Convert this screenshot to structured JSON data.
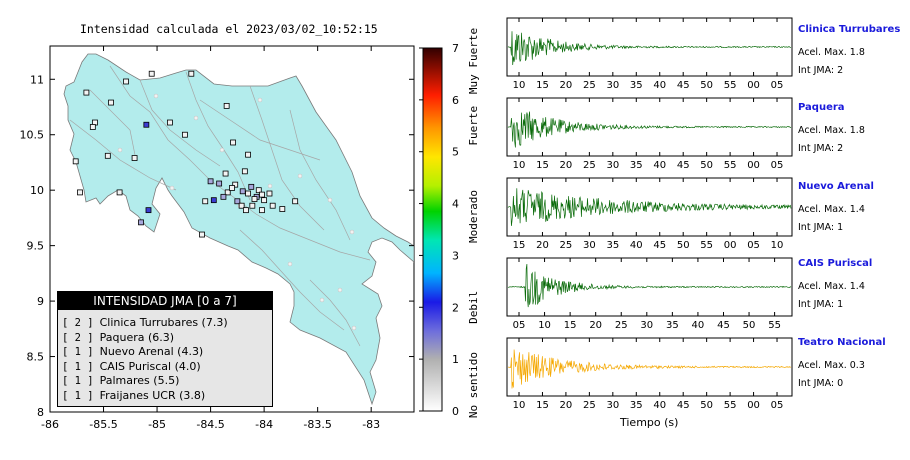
{
  "map": {
    "title": "Intensidad calculada el 2023/03/02_10:52:15",
    "lat_ticks": [
      "11",
      "10.5",
      "10",
      "9.5",
      "9",
      "8.5",
      "8"
    ],
    "lon_ticks": [
      "-86",
      "-85.5",
      "-85",
      "-84.5",
      "-84",
      "-83.5",
      "-83"
    ],
    "land_color": "#b3ecec",
    "station_markers": [
      {
        "lon": -85.66,
        "lat": 10.88,
        "level": 0
      },
      {
        "lon": -85.29,
        "lat": 10.98,
        "level": 0
      },
      {
        "lon": -85.05,
        "lat": 11.05,
        "level": 0
      },
      {
        "lon": -85.43,
        "lat": 10.79,
        "level": 0
      },
      {
        "lon": -84.68,
        "lat": 11.05,
        "level": 0
      },
      {
        "lon": -84.35,
        "lat": 10.76,
        "level": 0
      },
      {
        "lon": -85.58,
        "lat": 10.61,
        "level": 0
      },
      {
        "lon": -85.1,
        "lat": 10.59,
        "level": 2
      },
      {
        "lon": -84.88,
        "lat": 10.61,
        "level": 0
      },
      {
        "lon": -84.74,
        "lat": 10.5,
        "level": 0
      },
      {
        "lon": -84.29,
        "lat": 10.43,
        "level": 0
      },
      {
        "lon": -84.15,
        "lat": 10.32,
        "level": 0
      },
      {
        "lon": -85.46,
        "lat": 10.31,
        "level": 0
      },
      {
        "lon": -85.76,
        "lat": 10.26,
        "level": 0
      },
      {
        "lon": -85.21,
        "lat": 10.29,
        "level": 0
      },
      {
        "lon": -84.36,
        "lat": 10.15,
        "level": 0
      },
      {
        "lon": -84.18,
        "lat": 10.17,
        "level": 0
      },
      {
        "lon": -84.5,
        "lat": 10.08,
        "level": 1
      },
      {
        "lon": -84.42,
        "lat": 10.06,
        "level": 1
      },
      {
        "lon": -84.27,
        "lat": 10.05,
        "level": 0
      },
      {
        "lon": -84.12,
        "lat": 10.03,
        "level": 1
      },
      {
        "lon": -84.05,
        "lat": 10.0,
        "level": 0
      },
      {
        "lon": -84.02,
        "lat": 9.96,
        "level": 0
      },
      {
        "lon": -84.0,
        "lat": 9.91,
        "level": 0
      },
      {
        "lon": -84.2,
        "lat": 9.99,
        "level": 1
      },
      {
        "lon": -84.15,
        "lat": 9.97,
        "level": 0
      },
      {
        "lon": -84.07,
        "lat": 9.94,
        "level": 1
      },
      {
        "lon": -84.09,
        "lat": 9.92,
        "level": 0
      },
      {
        "lon": -83.95,
        "lat": 9.97,
        "level": 0
      },
      {
        "lon": -83.92,
        "lat": 9.86,
        "level": 0
      },
      {
        "lon": -84.34,
        "lat": 9.98,
        "level": 0
      },
      {
        "lon": -84.25,
        "lat": 9.9,
        "level": 1
      },
      {
        "lon": -84.47,
        "lat": 9.91,
        "level": 2
      },
      {
        "lon": -84.55,
        "lat": 9.9,
        "level": 0
      },
      {
        "lon": -84.21,
        "lat": 9.86,
        "level": 0
      },
      {
        "lon": -84.11,
        "lat": 9.86,
        "level": 0
      },
      {
        "lon": -84.02,
        "lat": 9.82,
        "level": 0
      },
      {
        "lon": -83.83,
        "lat": 9.83,
        "level": 0
      },
      {
        "lon": -83.71,
        "lat": 9.9,
        "level": 0
      },
      {
        "lon": -84.17,
        "lat": 9.82,
        "level": 0
      },
      {
        "lon": -84.3,
        "lat": 10.02,
        "level": 0
      },
      {
        "lon": -85.72,
        "lat": 9.98,
        "level": 0
      },
      {
        "lon": -85.35,
        "lat": 9.98,
        "level": 0
      },
      {
        "lon": -85.08,
        "lat": 9.82,
        "level": 2
      },
      {
        "lon": -85.15,
        "lat": 9.71,
        "level": 1
      },
      {
        "lon": -84.58,
        "lat": 9.6,
        "level": 0
      },
      {
        "lon": -85.6,
        "lat": 10.57,
        "level": 0
      },
      {
        "lon": -84.38,
        "lat": 9.94,
        "level": 1
      }
    ]
  },
  "colorbar": {
    "ticks": [
      "0",
      "1",
      "2",
      "3",
      "4",
      "5",
      "6",
      "7"
    ],
    "labels": [
      {
        "text": "No sentido",
        "level": 0.5
      },
      {
        "text": "Debil",
        "level": 2
      },
      {
        "text": "Moderado",
        "level": 3.75
      },
      {
        "text": "Fuerte",
        "level": 5.5
      },
      {
        "text": "Muy Fuerte",
        "level": 6.75
      }
    ]
  },
  "legend": {
    "title": "INTENSIDAD JMA [0 a 7]",
    "items": [
      {
        "bracket": "[ 2 ]",
        "label": "Clinica Turrubares (7.3)"
      },
      {
        "bracket": "[ 2 ]",
        "label": "Paquera (6.3)"
      },
      {
        "bracket": "[ 1 ]",
        "label": "Nuevo Arenal (4.3)"
      },
      {
        "bracket": "[ 1 ]",
        "label": "CAIS Puriscal (4.0)"
      },
      {
        "bracket": "[ 1 ]",
        "label": "Palmares (5.5)"
      },
      {
        "bracket": "[ 1 ]",
        "label": "Fraijanes UCR (3.8)"
      }
    ]
  },
  "waveforms": [
    {
      "name": "Clinica Turrubares",
      "acel": "Acel. Max. 1.8",
      "jma": "Int JMA: 2",
      "color": "#0a6b0a",
      "ticks": [
        "10",
        "15",
        "20",
        "25",
        "30",
        "35",
        "40",
        "45",
        "50",
        "55",
        "00",
        "05"
      ],
      "onset": 0.01,
      "peak": 0.9,
      "decay": 0.12
    },
    {
      "name": "Paquera",
      "acel": "Acel. Max. 1.8",
      "jma": "Int JMA: 2",
      "color": "#0a6b0a",
      "ticks": [
        "10",
        "15",
        "20",
        "25",
        "30",
        "35",
        "40",
        "45",
        "50",
        "55",
        "00",
        "05"
      ],
      "onset": 0.01,
      "peak": 0.9,
      "decay": 0.14
    },
    {
      "name": "Nuevo Arenal",
      "acel": "Acel. Max. 1.4",
      "jma": "Int JMA: 1",
      "color": "#0a6b0a",
      "ticks": [
        "15",
        "20",
        "25",
        "30",
        "35",
        "40",
        "45",
        "50",
        "55",
        "00",
        "05",
        "10"
      ],
      "onset": 0.01,
      "peak": 0.75,
      "decay": 0.35
    },
    {
      "name": "CAIS Puriscal",
      "acel": "Acel. Max. 1.4",
      "jma": "Int JMA: 1",
      "color": "#0a6b0a",
      "ticks": [
        "05",
        "10",
        "15",
        "20",
        "25",
        "30",
        "35",
        "40",
        "45",
        "50",
        "55"
      ],
      "onset": 0.06,
      "peak": 0.95,
      "decay": 0.1
    },
    {
      "name": "Teatro Nacional",
      "acel": "Acel. Max. 0.3",
      "jma": "Int JMA: 0",
      "color": "#f5a800",
      "ticks": [
        "10",
        "15",
        "20",
        "25",
        "30",
        "35",
        "40",
        "45",
        "50",
        "55",
        "00",
        "05"
      ],
      "onset": 0.01,
      "peak": 0.85,
      "decay": 0.16
    }
  ],
  "xaxis_label": "Tiempo (s)"
}
